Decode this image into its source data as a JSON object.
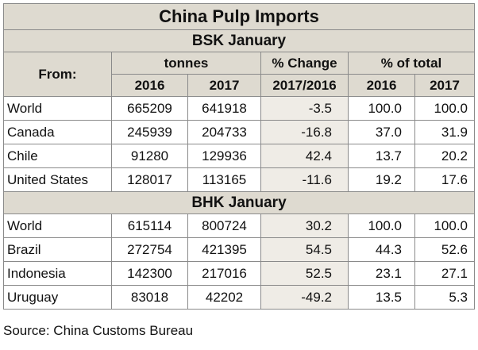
{
  "title": "China Pulp Imports",
  "header": {
    "from_label": "From:",
    "tonnes_label": "tonnes",
    "change_label": "% Change",
    "change_years": "2017/2016",
    "total_label": "% of total",
    "year_a": "2016",
    "year_b": "2017",
    "year_c": "2016",
    "year_d": "2017"
  },
  "bsk": {
    "label": "BSK January",
    "rows": [
      {
        "country": "World",
        "t2016": "665209",
        "t2017": "641918",
        "change": "-3.5",
        "p2016": "100.0",
        "p2017": "100.0"
      },
      {
        "country": "Canada",
        "t2016": "245939",
        "t2017": "204733",
        "change": "-16.8",
        "p2016": "37.0",
        "p2017": "31.9"
      },
      {
        "country": "Chile",
        "t2016": "91280",
        "t2017": "129936",
        "change": "42.4",
        "p2016": "13.7",
        "p2017": "20.2"
      },
      {
        "country": "United States",
        "t2016": "128017",
        "t2017": "113165",
        "change": "-11.6",
        "p2016": "19.2",
        "p2017": "17.6"
      }
    ]
  },
  "bhk": {
    "label": "BHK January",
    "rows": [
      {
        "country": "World",
        "t2016": "615114",
        "t2017": "800724",
        "change": "30.2",
        "p2016": "100.0",
        "p2017": "100.0"
      },
      {
        "country": "Brazil",
        "t2016": "272754",
        "t2017": "421395",
        "change": "54.5",
        "p2016": "44.3",
        "p2017": "52.6"
      },
      {
        "country": "Indonesia",
        "t2016": "142300",
        "t2017": "217016",
        "change": "52.5",
        "p2016": "23.1",
        "p2017": "27.1"
      },
      {
        "country": "Uruguay",
        "t2016": "83018",
        "t2017": "42202",
        "change": "-49.2",
        "p2016": "13.5",
        "p2017": "5.3"
      }
    ]
  },
  "source": "Source: China Customs Bureau"
}
